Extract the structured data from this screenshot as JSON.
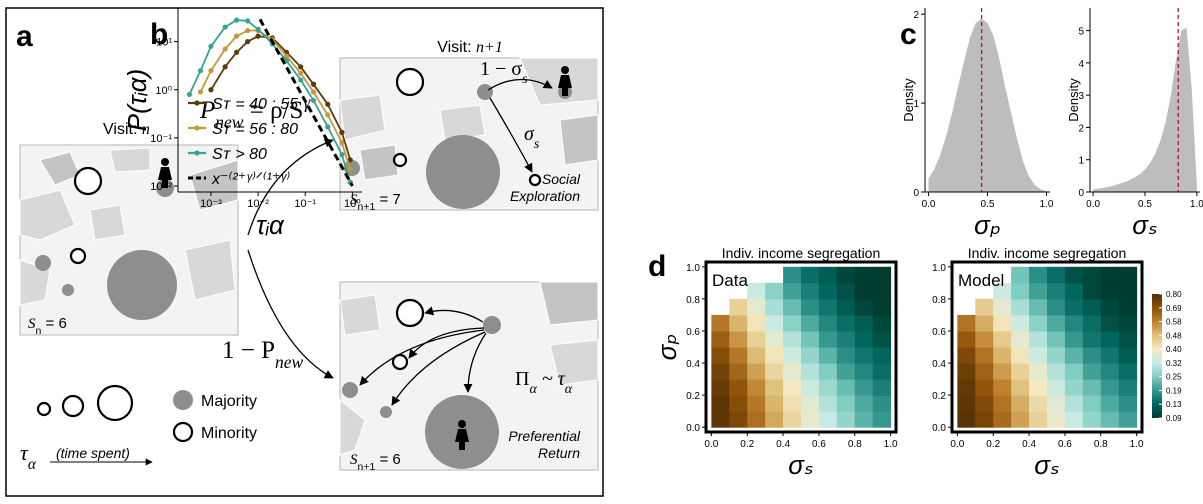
{
  "diagram": {
    "panel_label": "a",
    "visit_n": [
      "Visit: ",
      "n"
    ],
    "visit_n1": [
      "Visit: ",
      "n+1"
    ],
    "s_n": [
      "S",
      "n",
      " = 6"
    ],
    "s_n1_explore": [
      "S",
      "n+1",
      " = 7"
    ],
    "s_n1_return": [
      "S",
      "n+1",
      " = 6"
    ],
    "p_new": [
      "P",
      "new",
      " = ρ/S",
      "γ"
    ],
    "one_minus_p_new": [
      "1 − P",
      "new"
    ],
    "one_minus_sigma_s": [
      "1 − σ",
      "s"
    ],
    "sigma_s": [
      "σ",
      "s"
    ],
    "pi_tau": [
      "Π",
      "α",
      " ~ τ",
      "α"
    ],
    "social_exploration": [
      "Social",
      "Exploration"
    ],
    "preferential_return": [
      "Preferential",
      "Return"
    ],
    "legend": {
      "tau": [
        "τ",
        "α"
      ],
      "time_spent": "(time spent)",
      "majority": "Majority",
      "minority": "Minority"
    }
  },
  "chart_data": [
    {
      "type": "line",
      "panel_label": "b",
      "xlabel": "τᵢα",
      "ylabel": "P(τᵢα)",
      "xscale": "log",
      "yscale": "log",
      "xlim": [
        0.0002,
        1.6
      ],
      "ylim": [
        0.0075,
        50
      ],
      "xticks": [
        {
          "value": 0.001,
          "label": "10⁻³"
        },
        {
          "value": 0.01,
          "label": "10⁻²"
        },
        {
          "value": 0.1,
          "label": "10⁻¹"
        },
        {
          "value": 1,
          "label": "10⁰"
        }
      ],
      "yticks": [
        {
          "value": 0.01,
          "label": "10⁻²"
        },
        {
          "value": 0.1,
          "label": "10⁻¹"
        },
        {
          "value": 1,
          "label": "10⁰"
        },
        {
          "value": 10,
          "label": "10¹"
        }
      ],
      "legend": "bottom-left",
      "x": [
        0.00035,
        0.0006,
        0.001,
        0.002,
        0.0035,
        0.006,
        0.01,
        0.02,
        0.04,
        0.08,
        0.15,
        0.3,
        0.6,
        0.9
      ],
      "series": [
        {
          "name": "Sᴛ = 40 : 55",
          "color": "#5b3a0e",
          "values": [
            null,
            null,
            1,
            3,
            6,
            10,
            13,
            12,
            6,
            3,
            1.3,
            0.5,
            0.13,
            0.035
          ]
        },
        {
          "name": "Sᴛ = 56 : 80",
          "color": "#c8963e",
          "values": [
            null,
            0.9,
            2.5,
            7,
            13,
            17,
            17,
            11,
            5,
            2.2,
            0.9,
            0.3,
            0.08,
            0.022
          ]
        },
        {
          "name": "Sᴛ > 80",
          "color": "#35a396",
          "values": [
            0.8,
            2.5,
            8,
            20,
            28,
            27,
            18,
            9,
            4,
            1.6,
            0.6,
            0.17,
            0.045,
            0.012
          ]
        },
        {
          "name": "x⁻⁽²⁺ᵞ⁾ᐟ⁽¹⁺ᵞ⁾",
          "color": "#000000",
          "dash": true,
          "x": [
            0.011,
            1
          ],
          "values": [
            29,
            0.01
          ]
        }
      ]
    },
    {
      "type": "area",
      "panel_label": "c",
      "xlabel": "σₚ",
      "ylabel": "Density",
      "color": "#bdbdbd",
      "xlim": [
        -0.03,
        1.03
      ],
      "ylim": [
        0,
        2.07
      ],
      "xticks": [
        {
          "value": 0,
          "label": "0.0"
        },
        {
          "value": 0.5,
          "label": "0.5"
        },
        {
          "value": 1,
          "label": "1.0"
        }
      ],
      "yticks": [
        0,
        1,
        2
      ],
      "x": [
        0,
        0.05,
        0.1,
        0.15,
        0.2,
        0.25,
        0.3,
        0.35,
        0.4,
        0.45,
        0.5,
        0.55,
        0.6,
        0.65,
        0.7,
        0.75,
        0.8,
        0.85,
        0.9,
        0.95,
        1
      ],
      "values": [
        0.15,
        0.26,
        0.42,
        0.63,
        0.89,
        1.18,
        1.46,
        1.73,
        1.9,
        1.95,
        1.9,
        1.76,
        1.5,
        1.18,
        0.89,
        0.6,
        0.35,
        0.18,
        0.08,
        0.03,
        0.01
      ],
      "vline": 0.45,
      "vline_color": "#b2182b"
    },
    {
      "type": "area",
      "xlabel": "σₛ",
      "ylabel": "Density",
      "color": "#bdbdbd",
      "xlim": [
        -0.03,
        1.03
      ],
      "ylim": [
        0,
        5.7
      ],
      "xticks": [
        {
          "value": 0,
          "label": "0.0"
        },
        {
          "value": 0.5,
          "label": "0.5"
        },
        {
          "value": 1,
          "label": "1.0"
        }
      ],
      "yticks": [
        0,
        1,
        2,
        3,
        4,
        5
      ],
      "x": [
        0,
        0.05,
        0.1,
        0.15,
        0.2,
        0.25,
        0.3,
        0.35,
        0.4,
        0.45,
        0.5,
        0.55,
        0.6,
        0.65,
        0.7,
        0.75,
        0.8,
        0.85,
        0.9,
        0.95,
        1
      ],
      "values": [
        0.08,
        0.1,
        0.13,
        0.16,
        0.2,
        0.25,
        0.3,
        0.37,
        0.45,
        0.55,
        0.7,
        0.9,
        1.2,
        1.6,
        2.2,
        3.0,
        4.1,
        5.0,
        5.1,
        3.2,
        0.2
      ],
      "vline": 0.82,
      "vline_color": "#b2182b"
    },
    {
      "type": "heatmap",
      "panel_label": "d",
      "title": "Indiv. income segregation",
      "inset_label": "Data",
      "xlabel": "σₛ",
      "ylabel": "σₚ",
      "xlim": [
        -0.03,
        1.03
      ],
      "ylim": [
        -0.03,
        1.03
      ],
      "xticks": [
        {
          "value": 0,
          "label": "0.0"
        },
        {
          "value": 0.2,
          "label": "0.2"
        },
        {
          "value": 0.4,
          "label": "0.4"
        },
        {
          "value": 0.6,
          "label": "0.6"
        },
        {
          "value": 0.8,
          "label": "0.8"
        },
        {
          "value": 1,
          "label": "1.0"
        }
      ],
      "yticks": [
        {
          "value": 0,
          "label": "0.0"
        },
        {
          "value": 0.2,
          "label": "0.2"
        },
        {
          "value": 0.4,
          "label": "0.4"
        },
        {
          "value": 0.6,
          "label": "0.6"
        },
        {
          "value": 0.8,
          "label": "0.8"
        },
        {
          "value": 1,
          "label": "1.0"
        }
      ],
      "x": [
        0.05,
        0.15,
        0.25,
        0.35,
        0.45,
        0.55,
        0.65,
        0.75,
        0.85,
        0.95
      ],
      "y": [
        0.05,
        0.15,
        0.25,
        0.35,
        0.45,
        0.55,
        0.65,
        0.75,
        0.85,
        0.95
      ],
      "z": [
        [
          0.78,
          0.72,
          0.62,
          0.52,
          0.44,
          0.38,
          0.32,
          0.27,
          0.22,
          0.19
        ],
        [
          0.78,
          0.7,
          0.6,
          0.5,
          0.42,
          0.36,
          0.3,
          0.25,
          0.21,
          0.18
        ],
        [
          0.76,
          0.68,
          0.57,
          0.48,
          0.4,
          0.33,
          0.28,
          0.23,
          0.19,
          0.16
        ],
        [
          0.74,
          0.64,
          0.53,
          0.44,
          0.37,
          0.3,
          0.25,
          0.2,
          0.17,
          0.14
        ],
        [
          0.7,
          0.6,
          0.49,
          0.41,
          0.33,
          0.27,
          0.22,
          0.18,
          0.15,
          0.13
        ],
        [
          0.66,
          0.55,
          0.45,
          0.37,
          0.3,
          0.24,
          0.19,
          0.16,
          0.13,
          0.11
        ],
        [
          0.6,
          0.5,
          0.41,
          0.33,
          0.26,
          0.21,
          0.17,
          0.14,
          0.12,
          0.1
        ],
        [
          null,
          0.45,
          0.37,
          0.29,
          0.23,
          0.18,
          0.15,
          0.12,
          0.1,
          0.09
        ],
        [
          null,
          null,
          0.33,
          0.26,
          0.2,
          0.16,
          0.13,
          0.11,
          0.09,
          0.09
        ],
        [
          null,
          null,
          null,
          null,
          0.18,
          0.14,
          0.12,
          0.1,
          0.09,
          0.09
        ]
      ]
    },
    {
      "type": "heatmap",
      "title": "Indiv. income segregation",
      "inset_label": "Model",
      "xlabel": "σₛ",
      "xlim": [
        -0.03,
        1.03
      ],
      "ylim": [
        -0.03,
        1.03
      ],
      "xticks": [
        {
          "value": 0,
          "label": "0.0"
        },
        {
          "value": 0.2,
          "label": "0.2"
        },
        {
          "value": 0.4,
          "label": "0.4"
        },
        {
          "value": 0.6,
          "label": "0.6"
        },
        {
          "value": 0.8,
          "label": "0.8"
        },
        {
          "value": 1,
          "label": "1.0"
        }
      ],
      "yticks": [
        {
          "value": 0,
          "label": "0.0"
        },
        {
          "value": 0.2,
          "label": "0.2"
        },
        {
          "value": 0.4,
          "label": "0.4"
        },
        {
          "value": 0.6,
          "label": "0.6"
        },
        {
          "value": 0.8,
          "label": "0.8"
        },
        {
          "value": 1,
          "label": "1.0"
        }
      ],
      "x": [
        0.05,
        0.15,
        0.25,
        0.35,
        0.45,
        0.55,
        0.65,
        0.75,
        0.85,
        0.95
      ],
      "y": [
        0.05,
        0.15,
        0.25,
        0.35,
        0.45,
        0.55,
        0.65,
        0.75,
        0.85,
        0.95
      ],
      "z": [
        [
          0.79,
          0.73,
          0.63,
          0.53,
          0.45,
          0.38,
          0.32,
          0.27,
          0.23,
          0.2
        ],
        [
          0.78,
          0.71,
          0.61,
          0.51,
          0.43,
          0.36,
          0.3,
          0.25,
          0.21,
          0.18
        ],
        [
          0.77,
          0.68,
          0.58,
          0.48,
          0.4,
          0.33,
          0.27,
          0.23,
          0.19,
          0.16
        ],
        [
          0.75,
          0.65,
          0.54,
          0.45,
          0.37,
          0.3,
          0.25,
          0.2,
          0.17,
          0.14
        ],
        [
          0.72,
          0.61,
          0.5,
          0.41,
          0.33,
          0.27,
          0.22,
          0.18,
          0.15,
          0.12
        ],
        [
          0.67,
          0.56,
          0.46,
          0.37,
          0.3,
          0.24,
          0.19,
          0.15,
          0.13,
          0.11
        ],
        [
          0.61,
          0.51,
          0.41,
          0.33,
          0.26,
          0.21,
          0.17,
          0.14,
          0.11,
          0.1
        ],
        [
          null,
          0.46,
          0.37,
          0.29,
          0.23,
          0.18,
          0.14,
          0.12,
          0.1,
          0.09
        ],
        [
          null,
          null,
          0.33,
          0.25,
          0.2,
          0.16,
          0.13,
          0.1,
          0.09,
          0.09
        ],
        [
          null,
          null,
          null,
          0.24,
          0.18,
          0.14,
          0.11,
          0.1,
          0.09,
          0.09
        ]
      ],
      "colorbar": {
        "ticks": [
          {
            "value": 0.8,
            "label": "0.80"
          },
          0.69,
          0.58,
          0.48,
          {
            "value": 0.4,
            "label": "0.40"
          },
          0.32,
          0.25,
          0.19,
          0.13,
          0.09
        ],
        "colors": [
          "#543005",
          "#8c510a",
          "#bf812d",
          "#dfc27d",
          "#f6e8c3",
          "#c7eae5",
          "#80cdc1",
          "#35978f",
          "#01665e",
          "#003c30"
        ]
      }
    }
  ]
}
